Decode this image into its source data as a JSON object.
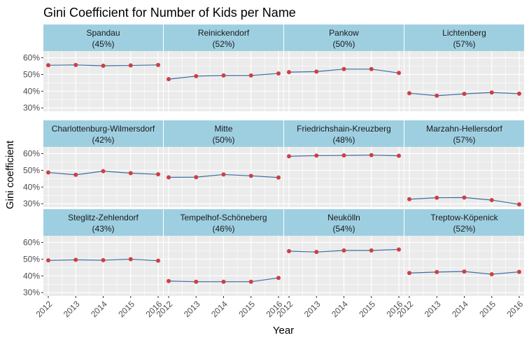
{
  "chart_data": {
    "type": "line",
    "title": "Gini Coefficient for Number of Kids per Name",
    "xlabel": "Year",
    "ylabel": "Gini coefficient",
    "x": [
      2012,
      2013,
      2014,
      2015,
      2016
    ],
    "row_ylims": [
      [
        0.28,
        0.64
      ],
      [
        0.28,
        0.64
      ],
      [
        0.28,
        0.64
      ]
    ],
    "yticks": [
      0.3,
      0.4,
      0.5,
      0.6
    ],
    "ytick_labels": [
      "30%",
      "40%",
      "50%",
      "60%"
    ],
    "grid": true,
    "colors": {
      "line": "#3b6da4",
      "point": "#cd3f43",
      "strip_fill": "#9ecfe1",
      "panel_bg": "#ebebeb",
      "grid": "#ffffff"
    },
    "facets": [
      {
        "name": "Spandau",
        "label": "(45%)",
        "values": [
          0.555,
          0.557,
          0.552,
          0.554,
          0.557
        ]
      },
      {
        "name": "Reinickendorf",
        "label": "(52%)",
        "values": [
          0.472,
          0.49,
          0.494,
          0.494,
          0.506
        ]
      },
      {
        "name": "Pankow",
        "label": "(50%)",
        "values": [
          0.514,
          0.517,
          0.532,
          0.532,
          0.509
        ]
      },
      {
        "name": "Lichtenberg",
        "label": "(57%)",
        "values": [
          0.388,
          0.373,
          0.384,
          0.392,
          0.385
        ]
      },
      {
        "name": "Charlottenburg-Wilmersdorf",
        "label": "(42%)",
        "values": [
          0.487,
          0.473,
          0.495,
          0.483,
          0.476
        ]
      },
      {
        "name": "Mitte",
        "label": "(50%)",
        "values": [
          0.458,
          0.459,
          0.475,
          0.467,
          0.457
        ]
      },
      {
        "name": "Friedrichshain-Kreuzberg",
        "label": "(48%)",
        "values": [
          0.584,
          0.588,
          0.589,
          0.591,
          0.587
        ]
      },
      {
        "name": "Marzahn-Hellersdorf",
        "label": "(57%)",
        "values": [
          0.327,
          0.336,
          0.337,
          0.322,
          0.296
        ]
      },
      {
        "name": "Steglitz-Zehlendorf",
        "label": "(43%)",
        "values": [
          0.493,
          0.496,
          0.494,
          0.5,
          0.491
        ]
      },
      {
        "name": "Tempelhof-Schöneberg",
        "label": "(46%)",
        "values": [
          0.369,
          0.365,
          0.365,
          0.365,
          0.388
        ]
      },
      {
        "name": "Neukölln",
        "label": "(54%)",
        "values": [
          0.548,
          0.543,
          0.552,
          0.552,
          0.558
        ]
      },
      {
        "name": "Treptow-Köpenick",
        "label": "(52%)",
        "values": [
          0.417,
          0.423,
          0.426,
          0.41,
          0.424
        ]
      }
    ]
  }
}
